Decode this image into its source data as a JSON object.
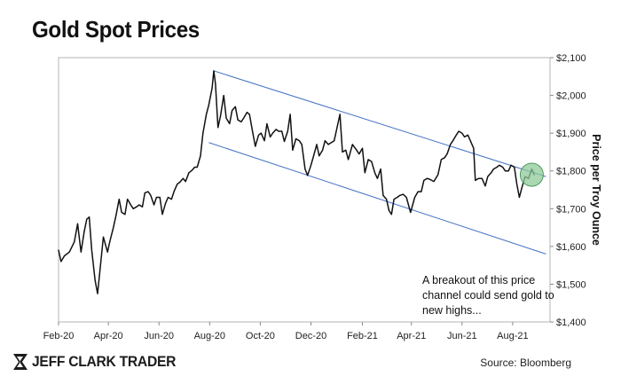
{
  "chart_data": {
    "type": "line",
    "title": "Gold Spot Prices",
    "xlabel": "",
    "ylabel": "Price per Troy Ounce",
    "x_tick_labels": [
      "Feb-20",
      "Apr-20",
      "Jun-20",
      "Aug-20",
      "Oct-20",
      "Dec-20",
      "Feb-21",
      "Apr-21",
      "Jun-21",
      "Aug-21"
    ],
    "y_tick_labels": [
      "$1,400",
      "$1,500",
      "$1,600",
      "$1,700",
      "$1,800",
      "$1,900",
      "$2,000",
      "$2,100"
    ],
    "ylim": [
      1400,
      2100
    ],
    "xlim": [
      "2020-02-01",
      "2021-09-15"
    ],
    "grid": false,
    "series": [
      {
        "color": "#111111",
        "points": [
          [
            "2020-02-01",
            1590
          ],
          [
            "2020-02-04",
            1560
          ],
          [
            "2020-02-08",
            1575
          ],
          [
            "2020-02-14",
            1585
          ],
          [
            "2020-02-20",
            1612
          ],
          [
            "2020-02-24",
            1660
          ],
          [
            "2020-02-28",
            1585
          ],
          [
            "2020-03-03",
            1640
          ],
          [
            "2020-03-06",
            1672
          ],
          [
            "2020-03-09",
            1678
          ],
          [
            "2020-03-12",
            1590
          ],
          [
            "2020-03-16",
            1510
          ],
          [
            "2020-03-19",
            1475
          ],
          [
            "2020-03-23",
            1560
          ],
          [
            "2020-03-26",
            1625
          ],
          [
            "2020-03-31",
            1585
          ],
          [
            "2020-04-03",
            1615
          ],
          [
            "2020-04-07",
            1650
          ],
          [
            "2020-04-10",
            1680
          ],
          [
            "2020-04-14",
            1725
          ],
          [
            "2020-04-17",
            1690
          ],
          [
            "2020-04-21",
            1685
          ],
          [
            "2020-04-24",
            1725
          ],
          [
            "2020-04-28",
            1710
          ],
          [
            "2020-05-01",
            1700
          ],
          [
            "2020-05-05",
            1705
          ],
          [
            "2020-05-08",
            1710
          ],
          [
            "2020-05-12",
            1705
          ],
          [
            "2020-05-15",
            1742
          ],
          [
            "2020-05-19",
            1745
          ],
          [
            "2020-05-22",
            1735
          ],
          [
            "2020-05-26",
            1710
          ],
          [
            "2020-05-29",
            1730
          ],
          [
            "2020-06-02",
            1730
          ],
          [
            "2020-06-05",
            1685
          ],
          [
            "2020-06-09",
            1715
          ],
          [
            "2020-06-12",
            1730
          ],
          [
            "2020-06-16",
            1725
          ],
          [
            "2020-06-19",
            1745
          ],
          [
            "2020-06-23",
            1765
          ],
          [
            "2020-06-26",
            1770
          ],
          [
            "2020-06-30",
            1780
          ],
          [
            "2020-07-03",
            1772
          ],
          [
            "2020-07-07",
            1795
          ],
          [
            "2020-07-10",
            1800
          ],
          [
            "2020-07-14",
            1810
          ],
          [
            "2020-07-17",
            1810
          ],
          [
            "2020-07-21",
            1840
          ],
          [
            "2020-07-24",
            1900
          ],
          [
            "2020-07-28",
            1950
          ],
          [
            "2020-07-31",
            1975
          ],
          [
            "2020-08-04",
            2020
          ],
          [
            "2020-08-06",
            2065
          ],
          [
            "2020-08-08",
            2030
          ],
          [
            "2020-08-11",
            1915
          ],
          [
            "2020-08-14",
            1945
          ],
          [
            "2020-08-18",
            2000
          ],
          [
            "2020-08-21",
            1940
          ],
          [
            "2020-08-25",
            1925
          ],
          [
            "2020-08-28",
            1960
          ],
          [
            "2020-09-01",
            1970
          ],
          [
            "2020-09-04",
            1935
          ],
          [
            "2020-09-08",
            1930
          ],
          [
            "2020-09-11",
            1940
          ],
          [
            "2020-09-15",
            1955
          ],
          [
            "2020-09-18",
            1950
          ],
          [
            "2020-09-22",
            1900
          ],
          [
            "2020-09-25",
            1865
          ],
          [
            "2020-09-29",
            1895
          ],
          [
            "2020-10-02",
            1900
          ],
          [
            "2020-10-06",
            1880
          ],
          [
            "2020-10-09",
            1925
          ],
          [
            "2020-10-13",
            1890
          ],
          [
            "2020-10-16",
            1900
          ],
          [
            "2020-10-20",
            1910
          ],
          [
            "2020-10-23",
            1905
          ],
          [
            "2020-10-27",
            1905
          ],
          [
            "2020-10-30",
            1878
          ],
          [
            "2020-11-03",
            1905
          ],
          [
            "2020-11-06",
            1950
          ],
          [
            "2020-11-09",
            1855
          ],
          [
            "2020-11-13",
            1885
          ],
          [
            "2020-11-17",
            1880
          ],
          [
            "2020-11-20",
            1870
          ],
          [
            "2020-11-24",
            1805
          ],
          [
            "2020-11-27",
            1788
          ],
          [
            "2020-12-01",
            1815
          ],
          [
            "2020-12-04",
            1838
          ],
          [
            "2020-12-08",
            1870
          ],
          [
            "2020-12-11",
            1840
          ],
          [
            "2020-12-15",
            1855
          ],
          [
            "2020-12-18",
            1880
          ],
          [
            "2020-12-22",
            1870
          ],
          [
            "2020-12-29",
            1880
          ],
          [
            "2021-01-05",
            1950
          ],
          [
            "2021-01-08",
            1850
          ],
          [
            "2021-01-12",
            1855
          ],
          [
            "2021-01-15",
            1830
          ],
          [
            "2021-01-20",
            1870
          ],
          [
            "2021-01-25",
            1855
          ],
          [
            "2021-01-28",
            1845
          ],
          [
            "2021-02-01",
            1860
          ],
          [
            "2021-02-04",
            1795
          ],
          [
            "2021-02-08",
            1830
          ],
          [
            "2021-02-12",
            1825
          ],
          [
            "2021-02-16",
            1795
          ],
          [
            "2021-02-19",
            1780
          ],
          [
            "2021-02-23",
            1805
          ],
          [
            "2021-02-26",
            1735
          ],
          [
            "2021-03-02",
            1725
          ],
          [
            "2021-03-05",
            1695
          ],
          [
            "2021-03-08",
            1685
          ],
          [
            "2021-03-11",
            1725
          ],
          [
            "2021-03-15",
            1730
          ],
          [
            "2021-03-18",
            1735
          ],
          [
            "2021-03-22",
            1738
          ],
          [
            "2021-03-26",
            1730
          ],
          [
            "2021-03-31",
            1690
          ],
          [
            "2021-04-05",
            1730
          ],
          [
            "2021-04-09",
            1745
          ],
          [
            "2021-04-13",
            1745
          ],
          [
            "2021-04-16",
            1775
          ],
          [
            "2021-04-20",
            1780
          ],
          [
            "2021-04-23",
            1778
          ],
          [
            "2021-04-28",
            1772
          ],
          [
            "2021-05-03",
            1790
          ],
          [
            "2021-05-07",
            1830
          ],
          [
            "2021-05-11",
            1835
          ],
          [
            "2021-05-14",
            1845
          ],
          [
            "2021-05-18",
            1870
          ],
          [
            "2021-05-21",
            1880
          ],
          [
            "2021-05-25",
            1895
          ],
          [
            "2021-05-28",
            1905
          ],
          [
            "2021-06-01",
            1900
          ],
          [
            "2021-06-04",
            1890
          ],
          [
            "2021-06-08",
            1895
          ],
          [
            "2021-06-11",
            1880
          ],
          [
            "2021-06-15",
            1860
          ],
          [
            "2021-06-17",
            1775
          ],
          [
            "2021-06-21",
            1780
          ],
          [
            "2021-06-25",
            1780
          ],
          [
            "2021-06-29",
            1760
          ],
          [
            "2021-07-02",
            1785
          ],
          [
            "2021-07-06",
            1795
          ],
          [
            "2021-07-09",
            1805
          ],
          [
            "2021-07-13",
            1810
          ],
          [
            "2021-07-16",
            1815
          ],
          [
            "2021-07-20",
            1810
          ],
          [
            "2021-07-23",
            1800
          ],
          [
            "2021-07-27",
            1800
          ],
          [
            "2021-07-30",
            1815
          ],
          [
            "2021-08-03",
            1810
          ],
          [
            "2021-08-06",
            1765
          ],
          [
            "2021-08-09",
            1730
          ],
          [
            "2021-08-12",
            1755
          ],
          [
            "2021-08-16",
            1785
          ],
          [
            "2021-08-20",
            1780
          ],
          [
            "2021-08-24",
            1805
          ],
          [
            "2021-08-27",
            1790
          ]
        ]
      }
    ],
    "channel_lines": [
      {
        "name": "Upper channel",
        "color": "#4472c4",
        "start": [
          "2020-08-06",
          2065
        ],
        "end": [
          "2021-09-10",
          1785
        ]
      },
      {
        "name": "Lower channel",
        "color": "#4472c4",
        "start": [
          "2020-07-31",
          1875
        ],
        "end": [
          "2021-09-10",
          1580
        ]
      }
    ],
    "highlight": {
      "center": [
        "2021-08-24",
        1790
      ],
      "color": "#8fc99a"
    },
    "annotation": "A breakout of this price channel could send gold to new highs..."
  },
  "footer": {
    "brand": "JEFF CLARK TRADER",
    "brand_icon": "jct-logo-icon",
    "source": "Source: Bloomberg"
  },
  "colors": {
    "price_line": "#111111",
    "channel_line": "#4472c4",
    "highlight_fill": "#8fc99a",
    "highlight_stroke": "#4f9a60"
  }
}
